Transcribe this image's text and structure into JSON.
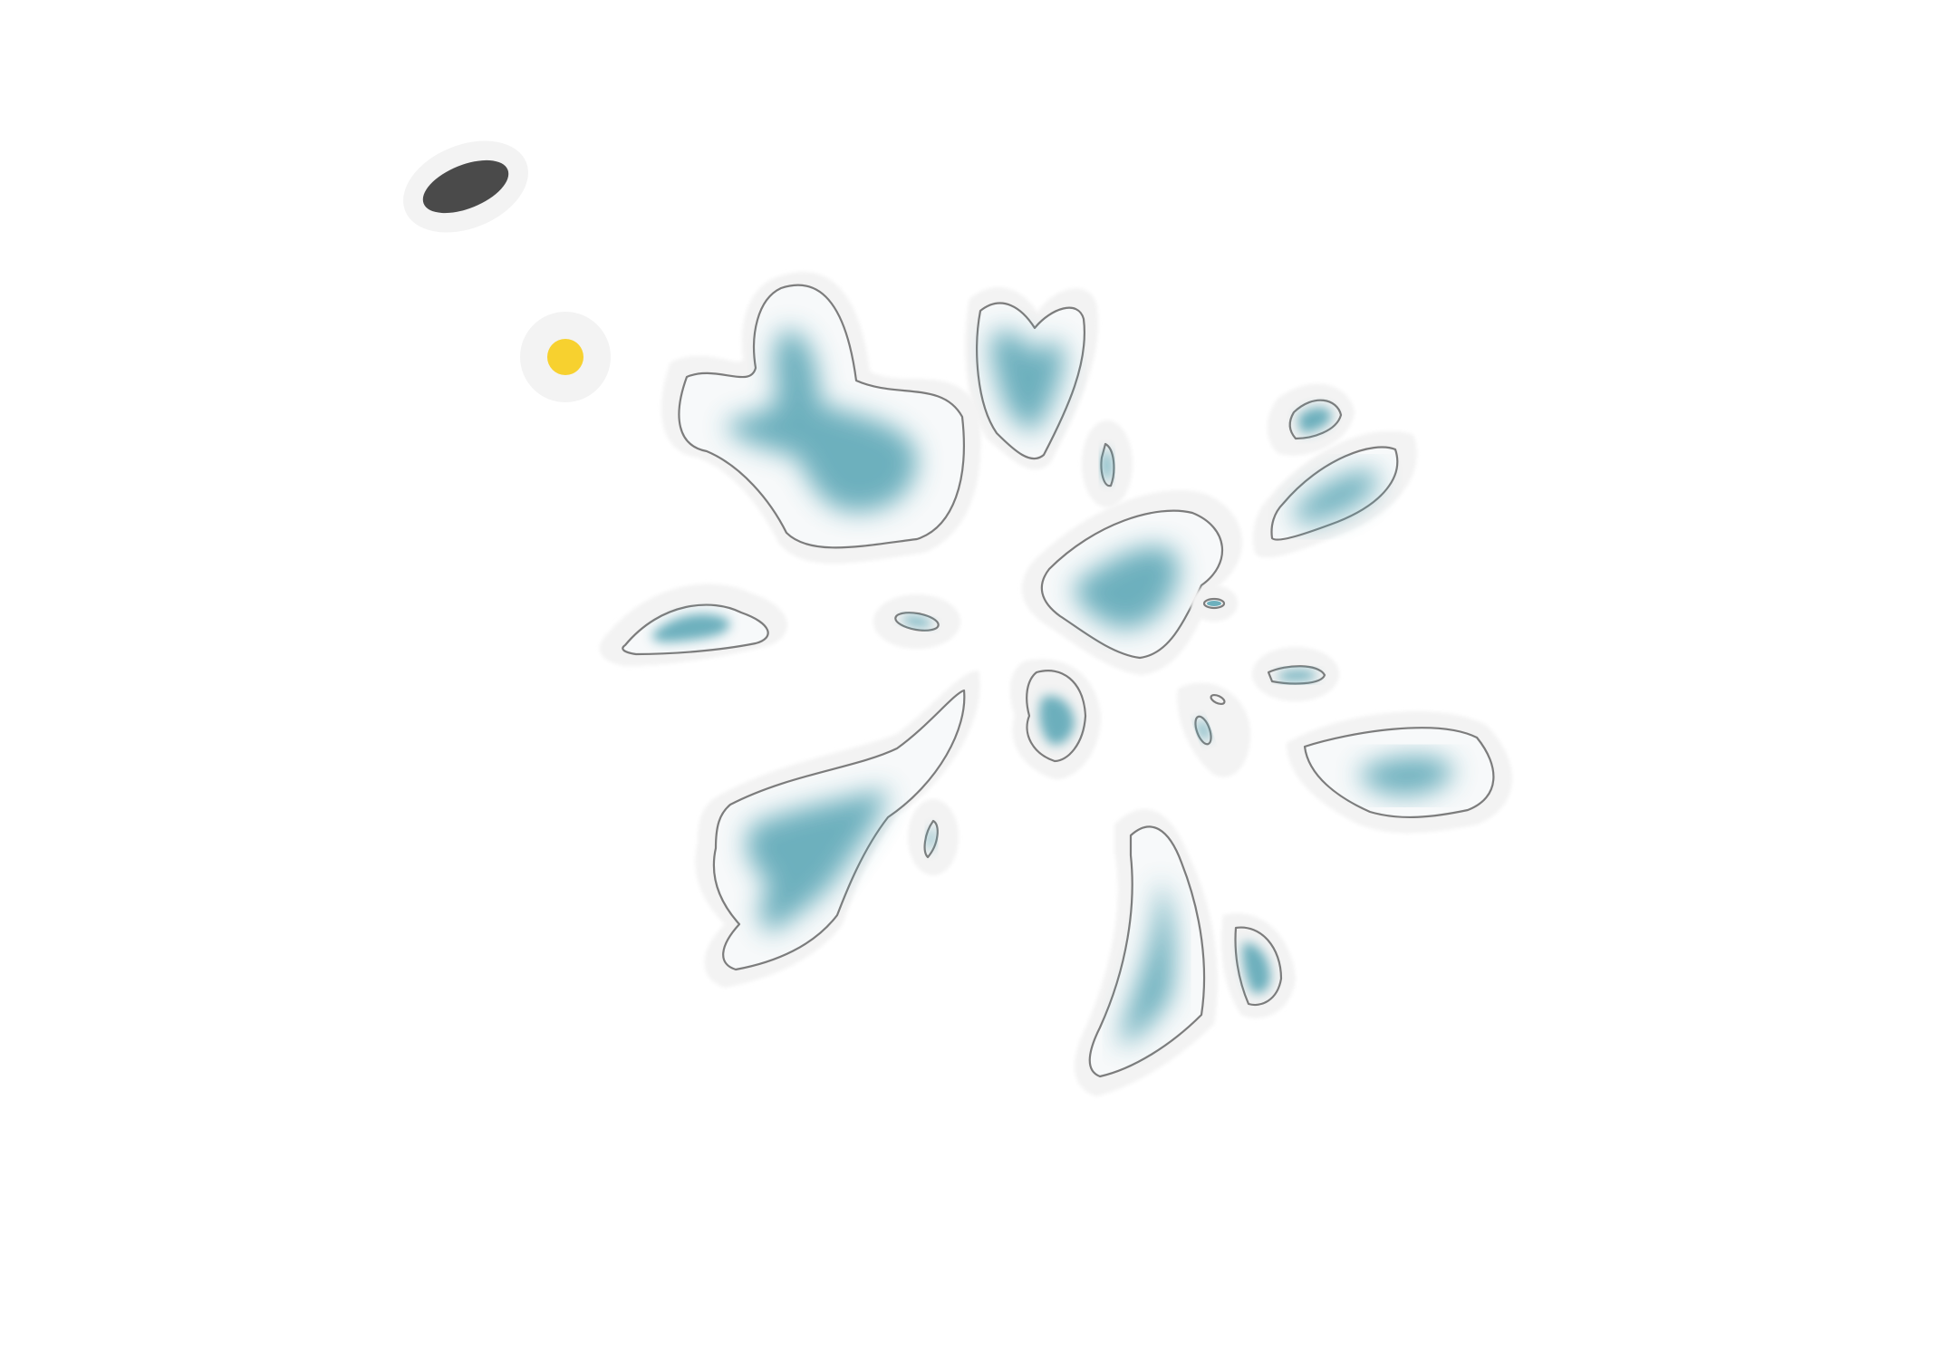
{
  "canvas": {
    "background": "#ffffff"
  },
  "palette": {
    "halo": "#f3f3f3",
    "paper": "#f7f9fa",
    "outline": "#6f6f6f",
    "water_wash": "#5aa6b5",
    "dark_token": "#4a4a4a",
    "yellow_token": "#f7d12f"
  },
  "tokens": [
    {
      "name": "dark-oval-token",
      "icon": "dark-oval-icon"
    },
    {
      "name": "yellow-dot-token",
      "icon": "yellow-dot-icon"
    }
  ],
  "island_count": 18
}
